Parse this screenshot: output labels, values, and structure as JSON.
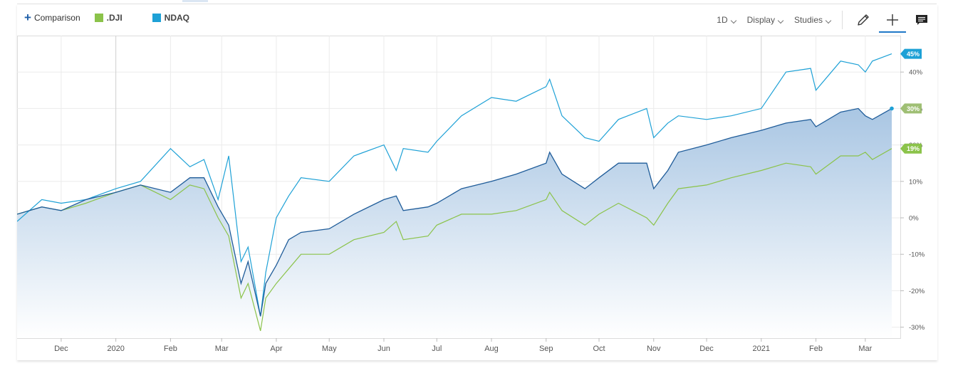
{
  "toolbar": {
    "comparison_label": "Comparison",
    "interval_label": "1D",
    "display_label": "Display",
    "studies_label": "Studies"
  },
  "colors": {
    "dji": "#8bc34a",
    "ndaq": "#1ea1d6",
    "main": "#1f5c99",
    "area_top": "#a9c6e3",
    "area_bottom": "#ffffff",
    "grid": "#ebebeb"
  },
  "chart_data": {
    "type": "line",
    "title": "",
    "xlabel": "",
    "ylabel": "",
    "ylim": [
      -33,
      50
    ],
    "yticks": [
      "-30%",
      "-20%",
      "-10%",
      "0%",
      "10%",
      "20%",
      "30%",
      "40%"
    ],
    "ytick_values": [
      -30,
      -20,
      -10,
      0,
      10,
      20,
      30,
      40
    ],
    "xticks": [
      {
        "label": "Dec",
        "x": "2019-12-01"
      },
      {
        "label": "2020",
        "x": "2020-01-01"
      },
      {
        "label": "Feb",
        "x": "2020-02-01"
      },
      {
        "label": "Mar",
        "x": "2020-03-01"
      },
      {
        "label": "Apr",
        "x": "2020-04-01"
      },
      {
        "label": "May",
        "x": "2020-05-01"
      },
      {
        "label": "Jun",
        "x": "2020-06-01"
      },
      {
        "label": "Jul",
        "x": "2020-07-01"
      },
      {
        "label": "Aug",
        "x": "2020-08-01"
      },
      {
        "label": "Sep",
        "x": "2020-09-01"
      },
      {
        "label": "Oct",
        "x": "2020-10-01"
      },
      {
        "label": "Nov",
        "x": "2020-11-01"
      },
      {
        "label": "Dec",
        "x": "2020-12-01"
      },
      {
        "label": "2021",
        "x": "2021-01-01"
      },
      {
        "label": "Feb",
        "x": "2021-02-01"
      },
      {
        "label": "Mar",
        "x": "2021-03-01"
      }
    ],
    "xlim": [
      "2019-11-06",
      "2021-03-16"
    ],
    "legend": [
      ".DJI",
      "NDAQ"
    ],
    "end_labels": {
      "ndaq": "45%",
      "main": "30%",
      "dji": "19%"
    },
    "series": [
      {
        "name": ".DJI",
        "role": "comparison",
        "x": [
          "2019-11-06",
          "2019-11-20",
          "2019-12-01",
          "2019-12-15",
          "2020-01-01",
          "2020-01-15",
          "2020-02-01",
          "2020-02-12",
          "2020-02-20",
          "2020-02-28",
          "2020-03-05",
          "2020-03-12",
          "2020-03-16",
          "2020-03-23",
          "2020-03-26",
          "2020-04-01",
          "2020-04-08",
          "2020-04-15",
          "2020-05-01",
          "2020-05-15",
          "2020-06-01",
          "2020-06-08",
          "2020-06-12",
          "2020-06-26",
          "2020-07-01",
          "2020-07-15",
          "2020-08-01",
          "2020-08-15",
          "2020-09-01",
          "2020-09-03",
          "2020-09-10",
          "2020-09-23",
          "2020-10-01",
          "2020-10-12",
          "2020-10-28",
          "2020-11-01",
          "2020-11-09",
          "2020-11-15",
          "2020-12-01",
          "2020-12-15",
          "2021-01-01",
          "2021-01-15",
          "2021-01-29",
          "2021-02-01",
          "2021-02-15",
          "2021-02-25",
          "2021-03-01",
          "2021-03-05",
          "2021-03-16"
        ],
        "values": [
          1,
          3,
          2,
          4,
          7,
          9,
          5,
          9,
          8,
          0,
          -5,
          -22,
          -18,
          -31,
          -22,
          -18,
          -14,
          -10,
          -10,
          -6,
          -4,
          -1,
          -6,
          -5,
          -2,
          1,
          1,
          2,
          5,
          7,
          2,
          -2,
          1,
          4,
          0,
          -2,
          4,
          8,
          9,
          11,
          13,
          15,
          14,
          12,
          17,
          17,
          18,
          16,
          19
        ]
      },
      {
        "name": "NDAQ",
        "role": "comparison",
        "x": [
          "2019-11-06",
          "2019-11-20",
          "2019-12-01",
          "2019-12-15",
          "2020-01-01",
          "2020-01-15",
          "2020-02-01",
          "2020-02-12",
          "2020-02-20",
          "2020-02-28",
          "2020-03-05",
          "2020-03-12",
          "2020-03-16",
          "2020-03-23",
          "2020-03-26",
          "2020-04-01",
          "2020-04-08",
          "2020-04-15",
          "2020-05-01",
          "2020-05-15",
          "2020-06-01",
          "2020-06-08",
          "2020-06-12",
          "2020-06-26",
          "2020-07-01",
          "2020-07-15",
          "2020-08-01",
          "2020-08-15",
          "2020-09-01",
          "2020-09-03",
          "2020-09-10",
          "2020-09-23",
          "2020-10-01",
          "2020-10-12",
          "2020-10-28",
          "2020-11-01",
          "2020-11-09",
          "2020-11-15",
          "2020-12-01",
          "2020-12-15",
          "2021-01-01",
          "2021-01-15",
          "2021-01-29",
          "2021-02-01",
          "2021-02-15",
          "2021-02-25",
          "2021-03-01",
          "2021-03-05",
          "2021-03-16"
        ],
        "values": [
          -1,
          5,
          4,
          5,
          8,
          10,
          19,
          14,
          16,
          5,
          17,
          -12,
          -8,
          -27,
          -15,
          0,
          6,
          11,
          10,
          17,
          20,
          13,
          19,
          18,
          21,
          28,
          33,
          32,
          36,
          38,
          28,
          22,
          21,
          27,
          30,
          22,
          26,
          28,
          27,
          28,
          30,
          40,
          41,
          35,
          43,
          42,
          40,
          43,
          45
        ]
      },
      {
        "name": "",
        "role": "main",
        "x": [
          "2019-11-06",
          "2019-11-20",
          "2019-12-01",
          "2019-12-15",
          "2020-01-01",
          "2020-01-15",
          "2020-02-01",
          "2020-02-12",
          "2020-02-20",
          "2020-02-28",
          "2020-03-05",
          "2020-03-12",
          "2020-03-16",
          "2020-03-23",
          "2020-03-26",
          "2020-04-01",
          "2020-04-08",
          "2020-04-15",
          "2020-05-01",
          "2020-05-15",
          "2020-06-01",
          "2020-06-08",
          "2020-06-12",
          "2020-06-26",
          "2020-07-01",
          "2020-07-15",
          "2020-08-01",
          "2020-08-15",
          "2020-09-01",
          "2020-09-03",
          "2020-09-10",
          "2020-09-23",
          "2020-10-01",
          "2020-10-12",
          "2020-10-28",
          "2020-11-01",
          "2020-11-09",
          "2020-11-15",
          "2020-12-01",
          "2020-12-15",
          "2021-01-01",
          "2021-01-15",
          "2021-01-29",
          "2021-02-01",
          "2021-02-15",
          "2021-02-25",
          "2021-03-01",
          "2021-03-05",
          "2021-03-16"
        ],
        "values": [
          1,
          3,
          2,
          5,
          7,
          9,
          7,
          11,
          11,
          3,
          -2,
          -18,
          -12,
          -27,
          -18,
          -13,
          -6,
          -4,
          -3,
          1,
          5,
          6,
          2,
          3,
          4,
          8,
          10,
          12,
          15,
          18,
          12,
          8,
          11,
          15,
          15,
          8,
          13,
          18,
          20,
          22,
          24,
          26,
          27,
          25,
          29,
          30,
          28,
          27,
          30
        ]
      }
    ]
  }
}
